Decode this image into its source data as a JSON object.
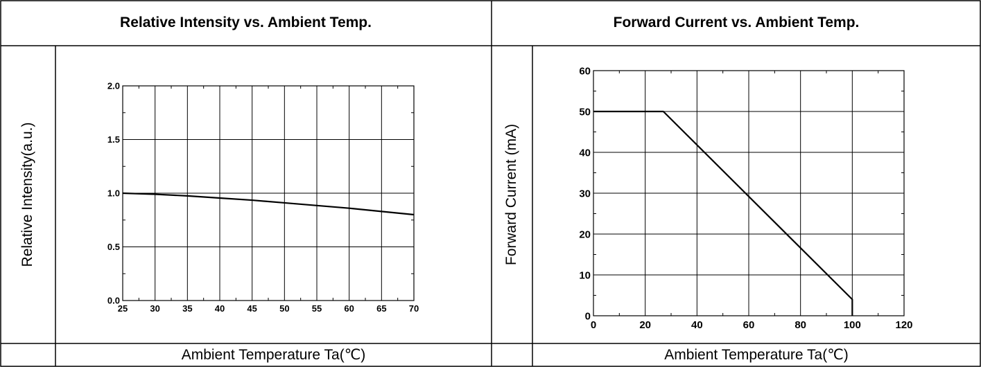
{
  "chart_data": [
    {
      "type": "line",
      "title": "Relative Intensity vs. Ambient Temp.",
      "xlabel": "Ambient Temperature Ta(℃)",
      "ylabel": "Relative Intensity(a.u.)",
      "xlim": [
        25,
        70
      ],
      "ylim": [
        0.0,
        2.0
      ],
      "xticks": [
        "25",
        "30",
        "35",
        "40",
        "45",
        "50",
        "55",
        "60",
        "65",
        "70"
      ],
      "yticks": [
        "0.0",
        "0.5",
        "1.0",
        "1.5",
        "2.0"
      ],
      "grid": true,
      "series": [
        {
          "x": [
            25,
            30,
            35,
            40,
            45,
            50,
            55,
            60,
            65,
            70
          ],
          "values": [
            1.0,
            0.99,
            0.975,
            0.955,
            0.935,
            0.91,
            0.885,
            0.86,
            0.83,
            0.8
          ]
        }
      ]
    },
    {
      "type": "line",
      "title": "Forward Current vs. Ambient Temp.",
      "xlabel": "Ambient Temperature Ta(℃)",
      "ylabel": "Forward Current (mA)",
      "xlim": [
        0,
        120
      ],
      "ylim": [
        0,
        60
      ],
      "xticks": [
        "0",
        "20",
        "40",
        "60",
        "80",
        "100",
        "120"
      ],
      "yticks": [
        "0",
        "10",
        "20",
        "30",
        "40",
        "50",
        "60"
      ],
      "grid": true,
      "series": [
        {
          "x": [
            0,
            27,
            100,
            100
          ],
          "values": [
            50,
            50,
            4,
            0
          ]
        }
      ]
    }
  ]
}
